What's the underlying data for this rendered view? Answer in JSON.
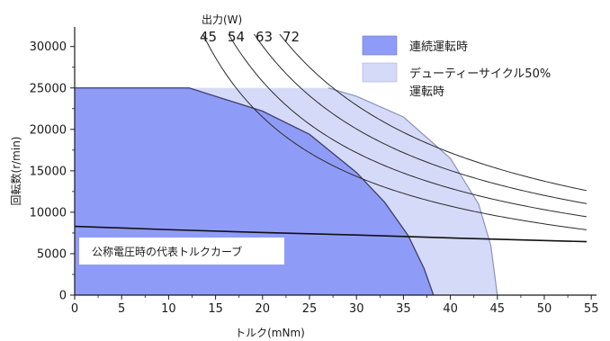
{
  "chart_data": {
    "type": "area",
    "xlabel": "トルク(mNm)",
    "ylabel": "回転数(r/min)",
    "xlim": [
      0,
      55
    ],
    "ylim": [
      0,
      33000
    ],
    "x_ticks": [
      0,
      5,
      10,
      15,
      20,
      25,
      30,
      35,
      40,
      45,
      50,
      55
    ],
    "y_ticks": [
      0,
      5000,
      10000,
      15000,
      20000,
      25000,
      30000
    ],
    "grid": false,
    "legend_position": "top-right",
    "colors": {
      "continuous": "#8f9cf7",
      "duty": "#d5daf8",
      "axis": "#1a1a1a",
      "label_box_bg": "#ffffff"
    },
    "series": [
      {
        "name": "連続運転時",
        "kind": "region",
        "points": [
          [
            0,
            25000
          ],
          [
            12.2,
            25000
          ],
          [
            20,
            22200
          ],
          [
            25,
            19400
          ],
          [
            30,
            14800
          ],
          [
            33,
            11200
          ],
          [
            35.5,
            7200
          ],
          [
            37.2,
            3200
          ],
          [
            38.2,
            0
          ]
        ]
      },
      {
        "name": "デューティーサイクル50%運転時",
        "kind": "region",
        "points": [
          [
            0,
            25000
          ],
          [
            27,
            25000
          ],
          [
            30,
            24000
          ],
          [
            35,
            21500
          ],
          [
            40,
            16500
          ],
          [
            43,
            11000
          ],
          [
            44.3,
            6000
          ],
          [
            45,
            0
          ]
        ]
      },
      {
        "name": "公称電圧時の代表トルクカーブ",
        "kind": "line",
        "points": [
          [
            0,
            8300
          ],
          [
            10,
            7900
          ],
          [
            20,
            7550
          ],
          [
            30,
            7250
          ],
          [
            40,
            6900
          ],
          [
            54.5,
            6450
          ]
        ]
      }
    ],
    "power_curves": {
      "title": "出力(W)",
      "curves": [
        {
          "label": "45",
          "watts": 45
        },
        {
          "label": "54",
          "watts": 54
        },
        {
          "label": "63",
          "watts": 63
        },
        {
          "label": "72",
          "watts": 72
        }
      ],
      "x_end": 54.5
    },
    "legend": [
      {
        "key": "continuous",
        "text": "連続運転時"
      },
      {
        "key": "duty",
        "text": "デューティーサイクル50%",
        "text2": "運転時"
      }
    ],
    "annotation": "公称電圧時の代表トルクカーブ"
  }
}
